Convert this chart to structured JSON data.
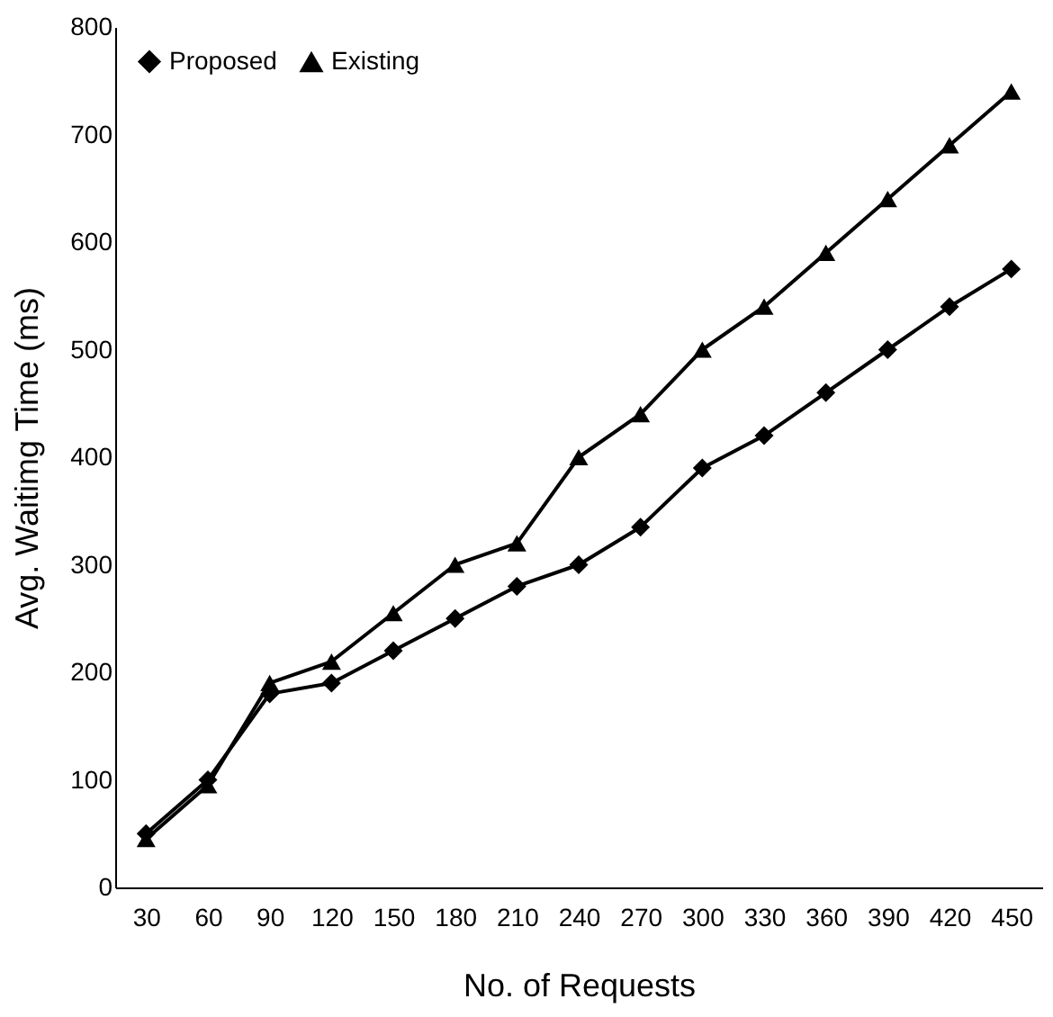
{
  "chart_data": {
    "type": "line",
    "xlabel": "No. of Requests",
    "ylabel": "Avg. Waitimg Time (ms)",
    "categories": [
      "30",
      "60",
      "90",
      "120",
      "150",
      "180",
      "210",
      "240",
      "270",
      "300",
      "330",
      "360",
      "390",
      "420",
      "450"
    ],
    "series": [
      {
        "name": "Proposed",
        "color": "#000000",
        "marker": "diamond",
        "values": [
          50,
          100,
          180,
          190,
          220,
          250,
          280,
          300,
          335,
          390,
          420,
          460,
          500,
          540,
          575
        ]
      },
      {
        "name": "Existing",
        "color": "#000000",
        "marker": "triangle",
        "values": [
          45,
          95,
          190,
          210,
          255,
          300,
          320,
          400,
          440,
          500,
          540,
          590,
          640,
          690,
          740
        ]
      }
    ],
    "ylim": [
      0,
      800
    ],
    "yticks": [
      0,
      100,
      200,
      300,
      400,
      500,
      600,
      700,
      800
    ],
    "grid": false,
    "legend": "top left",
    "line_style": "solid"
  }
}
